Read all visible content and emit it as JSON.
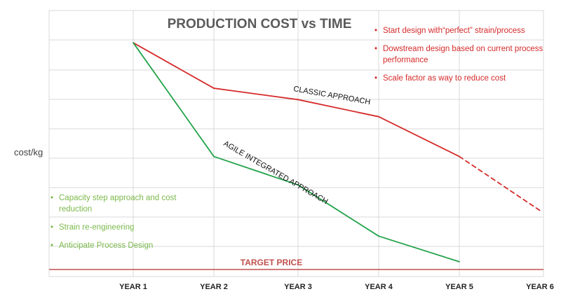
{
  "chart_data": {
    "type": "line",
    "title": "PRODUCTION COST vs TIME",
    "ylabel": "cost/kg",
    "xlabel": "",
    "categories": [
      "YEAR 1",
      "YEAR 2",
      "YEAR 3",
      "YEAR 4",
      "YEAR 5",
      "YEAR 6"
    ],
    "y_tick_labels": false,
    "ylim": [
      0,
      8
    ],
    "grid": true,
    "series": [
      {
        "name": "CLASSIC APPROACH",
        "color": "#d62a2a",
        "values": [
          7.9,
          6.3,
          5.9,
          5.3,
          3.9,
          2.0
        ],
        "dashed_from_index": 4
      },
      {
        "name": "AGILE INTEGRATED APPROACH",
        "color": "#22a34a",
        "values": [
          7.9,
          3.9,
          2.9,
          1.1,
          0.2,
          null
        ]
      }
    ],
    "reference_line": {
      "label": "TARGET PRICE",
      "value": 0,
      "color": "#c0504d"
    }
  },
  "notes": {
    "right": [
      "Start design with“perfect” strain/process",
      "Dowstream design based on current process performance",
      "Scale factor as way to reduce cost"
    ],
    "left": [
      "Capacity step approach and cost reduction",
      "Strain re-engineering",
      "Anticipate Process Design"
    ]
  }
}
